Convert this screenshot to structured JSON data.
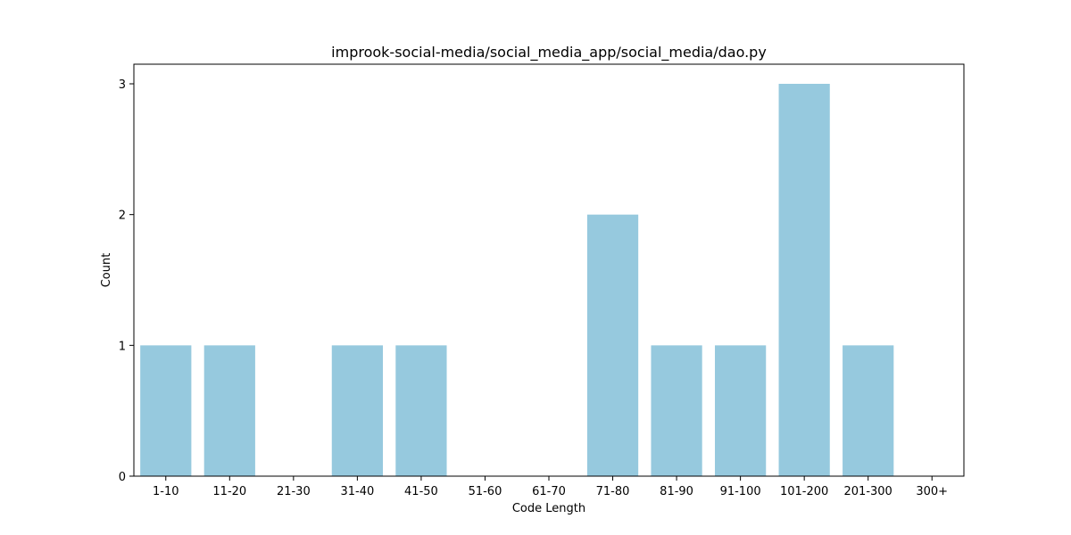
{
  "chart_data": {
    "type": "bar",
    "title": "improok-social-media/social_media_app/social_media/dao.py",
    "xlabel": "Code Length",
    "ylabel": "Count",
    "categories": [
      "1-10",
      "11-20",
      "21-30",
      "31-40",
      "41-50",
      "51-60",
      "61-70",
      "71-80",
      "81-90",
      "91-100",
      "101-200",
      "201-300",
      "300+"
    ],
    "values": [
      1,
      1,
      0,
      1,
      1,
      0,
      0,
      2,
      1,
      1,
      3,
      1,
      0
    ],
    "ylim": [
      0,
      3.15
    ],
    "yticks": [
      0,
      1,
      2,
      3
    ],
    "bar_color": "#96c9de",
    "grid": false,
    "legend": "none"
  }
}
